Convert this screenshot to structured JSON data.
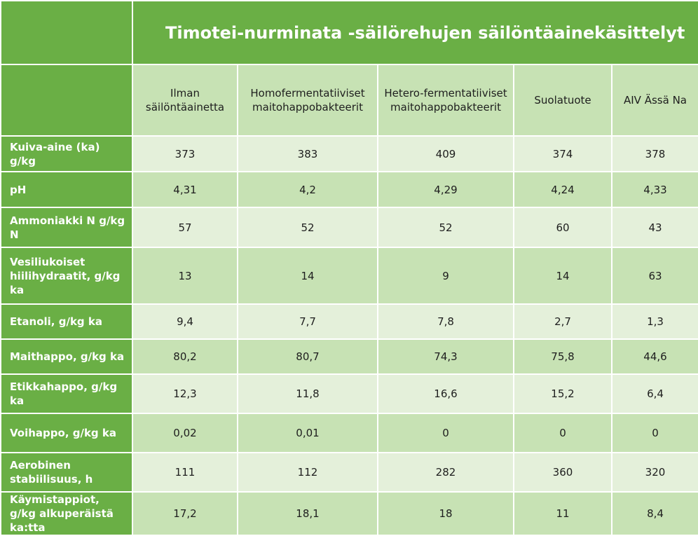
{
  "table": {
    "title": "Timotei-nurminata -säilörehujen säilöntäainekäsittelyt",
    "columns": [
      "Ilman säilöntäainetta",
      "Homofermentatiiviset maitohappobakteerit",
      "Hetero-fermentatiiviset maitohappobakteerit",
      "Suolatuote",
      "AIV Ässä Na"
    ],
    "rows": [
      {
        "label": "Kuiva-aine (ka) g/kg",
        "values": [
          "373",
          "383",
          "409",
          "374",
          "378"
        ]
      },
      {
        "label": "pH",
        "values": [
          "4,31",
          "4,2",
          "4,29",
          "4,24",
          "4,33"
        ]
      },
      {
        "label": "Ammoniakki N g/kg N",
        "values": [
          "57",
          "52",
          "52",
          "60",
          "43"
        ]
      },
      {
        "label": "Vesiliukoiset hiilihydraatit, g/kg ka",
        "values": [
          "13",
          "14",
          "9",
          "14",
          "63"
        ]
      },
      {
        "label": "Etanoli, g/kg ka",
        "values": [
          "9,4",
          "7,7",
          "7,8",
          "2,7",
          "1,3"
        ]
      },
      {
        "label": "Maithappo, g/kg ka",
        "values": [
          "80,2",
          "80,7",
          "74,3",
          "75,8",
          "44,6"
        ]
      },
      {
        "label": "Etikkahappo, g/kg ka",
        "values": [
          "12,3",
          "11,8",
          "16,6",
          "15,2",
          "6,4"
        ]
      },
      {
        "label": "Voihappo, g/kg ka",
        "values": [
          "0,02",
          "0,01",
          "0",
          "0",
          "0"
        ]
      },
      {
        "label": "Aerobinen stabiilisuus, h",
        "values": [
          "111",
          "112",
          "282",
          "360",
          "320"
        ]
      },
      {
        "label": "Käymistappiot, g/kg alkuperäistä ka:tta",
        "values": [
          "17,2",
          "18,1",
          "18",
          "11",
          "8,4"
        ]
      }
    ]
  },
  "colors": {
    "accent_green": "#6aaf45",
    "mid_green": "#c7e2b4",
    "light_green": "#e4f0da",
    "header_text": "#ffffff"
  }
}
